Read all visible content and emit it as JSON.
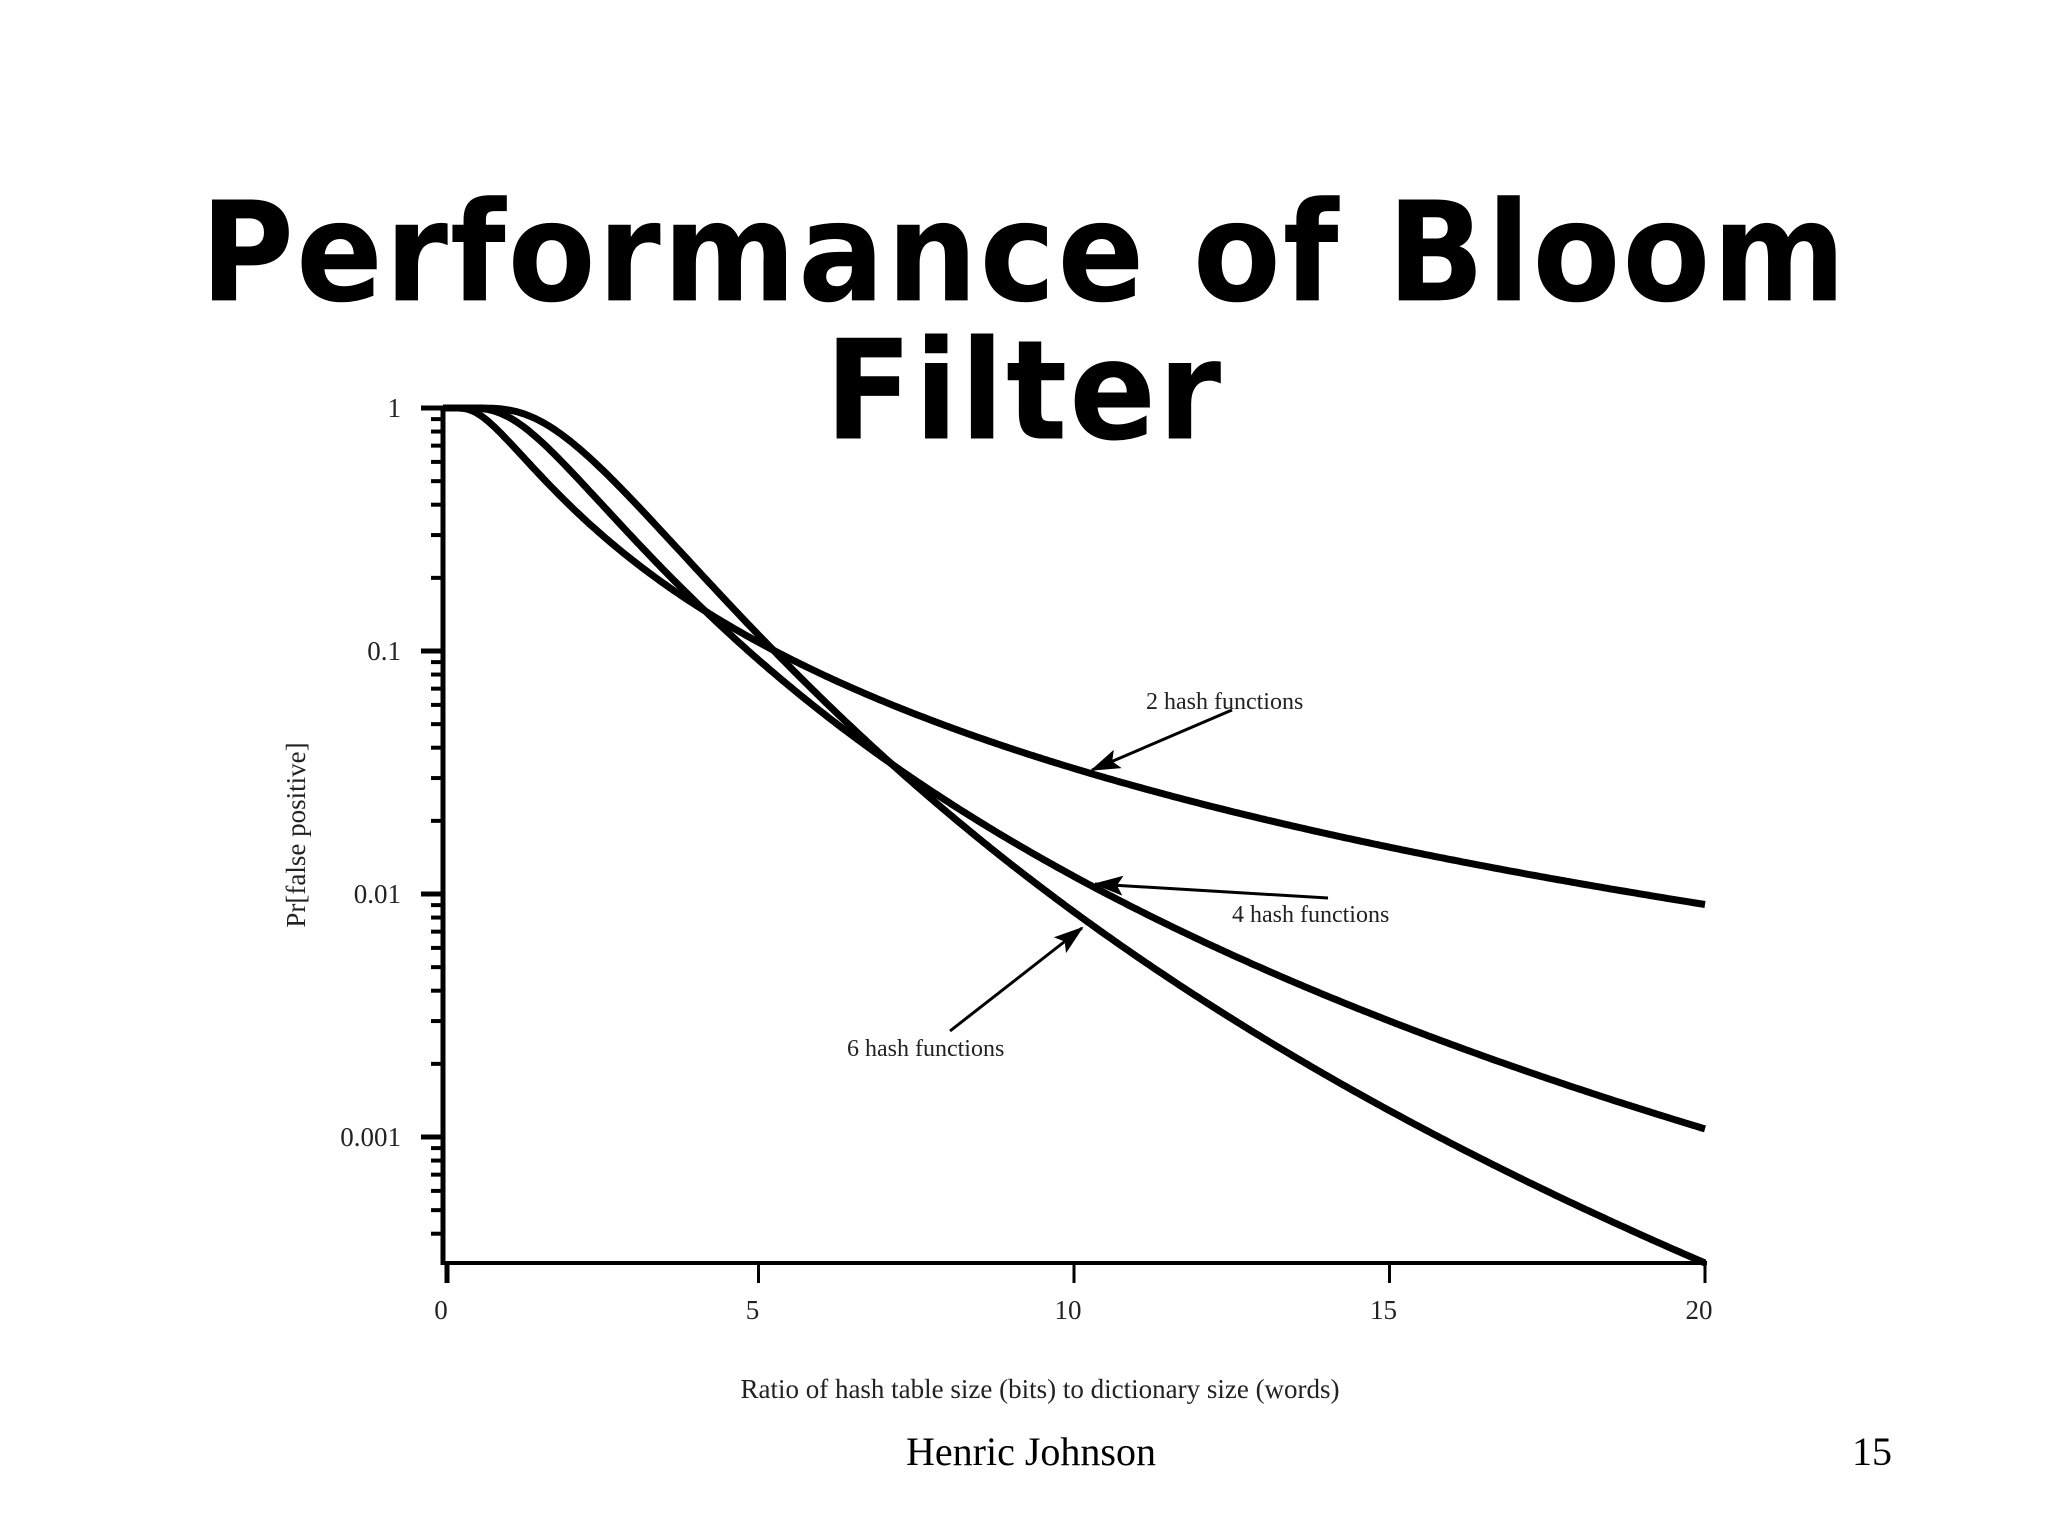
{
  "slide": {
    "title": "Performance of Bloom Filter",
    "author": "Henric Johnson",
    "page_number": "15"
  },
  "chart_data": {
    "type": "line",
    "title": "",
    "xlabel": "Ratio of hash table size (bits) to dictionary size (words)",
    "ylabel": "Pr[false positive]",
    "xlim": [
      0,
      20
    ],
    "ylim": [
      0.0003,
      1
    ],
    "yscale": "log",
    "grid": false,
    "legend": "annotations with arrows",
    "x_ticks": [
      "0",
      "5",
      "10",
      "15",
      "20"
    ],
    "y_ticks": [
      "1",
      "0.1",
      "0.01",
      "0.001"
    ],
    "x": [
      0,
      1,
      2,
      3,
      4,
      5,
      6,
      7,
      8,
      9,
      10,
      12,
      14,
      16,
      18,
      20
    ],
    "series": [
      {
        "name": "2 hash functions",
        "k": 2,
        "values": [
          1,
          0.7477,
          0.3996,
          0.2368,
          0.1548,
          0.1087,
          0.0804,
          0.0618,
          0.0489,
          0.0397,
          0.0329,
          0.0236,
          0.0177,
          0.0138,
          0.0111,
          0.00906
        ]
      },
      {
        "name": "4 hash functions",
        "k": 4,
        "values": [
          1,
          0.9288,
          0.559,
          0.294,
          0.1597,
          0.092,
          0.0561,
          0.0359,
          0.024,
          0.0166,
          0.0118,
          0.00646,
          0.00381,
          0.00239,
          0.00158,
          0.00108
        ]
      },
      {
        "name": "6 hash functions",
        "k": 6,
        "values": [
          1,
          0.9852,
          0.7358,
          0.418,
          0.2198,
          0.1164,
          0.0639,
          0.0364,
          0.0216,
          0.0133,
          0.00844,
          0.00371,
          0.00178,
          0.000929,
          0.000521,
          0.000303
        ]
      }
    ],
    "annotations": [
      {
        "text": "2 hash functions",
        "points_to_x": 10.2,
        "series": "2 hash functions"
      },
      {
        "text": "4 hash functions",
        "points_to_x": 10.3,
        "series": "4 hash functions"
      },
      {
        "text": "6 hash functions",
        "points_to_x": 10.0,
        "series": "6 hash functions"
      }
    ]
  }
}
